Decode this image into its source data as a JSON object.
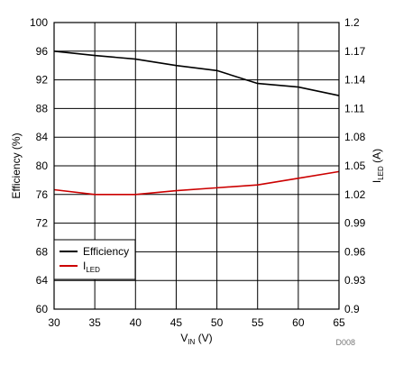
{
  "chart_data": {
    "type": "line",
    "x": [
      30,
      35,
      40,
      45,
      50,
      55,
      60,
      65
    ],
    "xlim": [
      30,
      65
    ],
    "xticks": [
      "30",
      "35",
      "40",
      "45",
      "50",
      "55",
      "60",
      "65"
    ],
    "xlabel": {
      "main": "V",
      "sub": "IN",
      "suffix": " (V)"
    },
    "left_axis": {
      "label": "Efficiency (%)",
      "ylim": [
        60,
        100
      ],
      "ticks": [
        "60",
        "64",
        "68",
        "72",
        "76",
        "80",
        "84",
        "88",
        "92",
        "96",
        "100"
      ]
    },
    "right_axis": {
      "label": {
        "main": "I",
        "sub": "LED",
        "suffix": " (A)"
      },
      "ylim": [
        0.9,
        1.2
      ],
      "ticks": [
        "0.9",
        "0.93",
        "0.96",
        "0.99",
        "1.02",
        "1.05",
        "1.08",
        "1.11",
        "1.14",
        "1.17",
        "1.2"
      ]
    },
    "grid": true,
    "legend_position": "bottom-left",
    "series": [
      {
        "name": "Efficiency",
        "axis": "left",
        "color": "#000000",
        "values": [
          96.0,
          95.4,
          94.9,
          94.0,
          93.3,
          91.5,
          91.0,
          89.8
        ]
      },
      {
        "name": "I",
        "name_sub": "LED",
        "axis": "right",
        "color": "#cc0000",
        "values": [
          1.025,
          1.02,
          1.02,
          1.024,
          1.027,
          1.03,
          1.037,
          1.044
        ]
      }
    ],
    "footnote": "D008"
  }
}
